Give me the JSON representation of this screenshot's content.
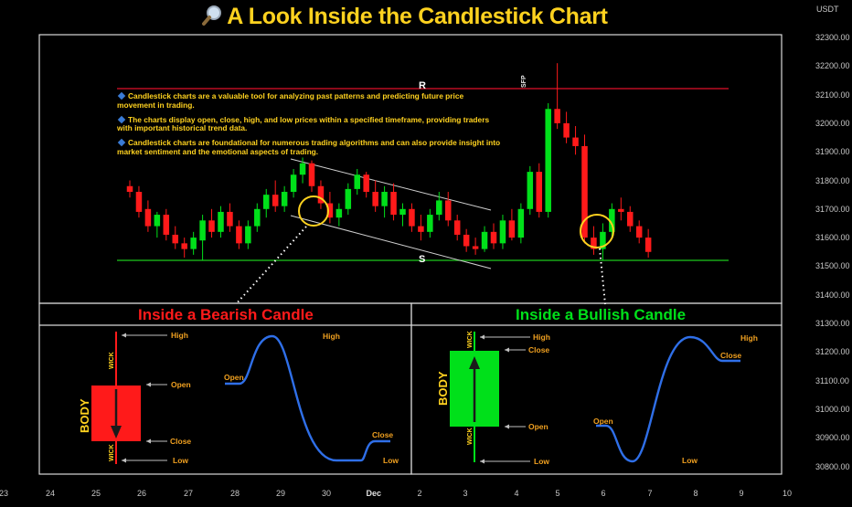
{
  "title": "A Look Inside the Candlestick Chart",
  "currency_label": "USDT",
  "price_axis": [
    "32300.00",
    "32200.00",
    "32100.00",
    "32000.00",
    "31900.00",
    "31800.00",
    "31700.00",
    "31600.00",
    "31500.00",
    "31400.00",
    "31300.00",
    "31200.00",
    "31100.00",
    "31000.00",
    "30900.00",
    "30800.00"
  ],
  "date_axis": [
    "23",
    "24",
    "25",
    "26",
    "27",
    "28",
    "29",
    "30",
    "Dec",
    "2",
    "3",
    "4",
    "5",
    "6",
    "7",
    "8",
    "9",
    "10"
  ],
  "notes": [
    "Candlestick charts are a valuable tool for analyzing past patterns and predicting future price movement in trading.",
    "The charts display open, close, high, and low prices within a specified timeframe, providing traders with important historical trend data.",
    "Candlestick charts are foundational for numerous trading algorithms and can also provide insight into market sentiment and the emotional aspects of trading."
  ],
  "levels": {
    "resistance_label": "R",
    "support_label": "S",
    "sfp_label": "SFP"
  },
  "panels": {
    "bearish": {
      "heading": "Inside a Bearish Candle",
      "body": "BODY",
      "wick": "WICK",
      "high": "High",
      "open": "Open",
      "close": "Close",
      "low": "Low",
      "line_high": "High",
      "line_open": "Open",
      "line_close": "Close",
      "line_low": "Low"
    },
    "bullish": {
      "heading": "Inside a Bullish Candle",
      "body": "BODY",
      "wick": "WICK",
      "high": "High",
      "open": "Open",
      "close": "Close",
      "low": "Low",
      "line_high": "High",
      "line_open": "Open",
      "line_close": "Close",
      "line_low": "Low"
    }
  },
  "colors": {
    "accent": "#ffd21f",
    "bull": "#00e01a",
    "bear": "#ff1a1a",
    "resistance": "#e0102a",
    "support": "#1ec81e",
    "line": "#2f6fe8",
    "label": "#f0a020"
  },
  "chart_data": {
    "type": "candlestick",
    "y_unit": "USDT",
    "ylim": [
      30750,
      32380
    ],
    "resistance": 32120,
    "support": 31520,
    "candles": [
      {
        "o": 31780,
        "h": 31800,
        "l": 31740,
        "c": 31760
      },
      {
        "o": 31760,
        "h": 31780,
        "l": 31670,
        "c": 31690
      },
      {
        "o": 31700,
        "h": 31730,
        "l": 31620,
        "c": 31640
      },
      {
        "o": 31640,
        "h": 31690,
        "l": 31600,
        "c": 31680
      },
      {
        "o": 31680,
        "h": 31700,
        "l": 31590,
        "c": 31610
      },
      {
        "o": 31610,
        "h": 31640,
        "l": 31560,
        "c": 31580
      },
      {
        "o": 31580,
        "h": 31600,
        "l": 31530,
        "c": 31560
      },
      {
        "o": 31560,
        "h": 31620,
        "l": 31540,
        "c": 31600
      },
      {
        "o": 31590,
        "h": 31680,
        "l": 31520,
        "c": 31660
      },
      {
        "o": 31660,
        "h": 31700,
        "l": 31600,
        "c": 31620
      },
      {
        "o": 31620,
        "h": 31710,
        "l": 31600,
        "c": 31690
      },
      {
        "o": 31690,
        "h": 31720,
        "l": 31620,
        "c": 31640
      },
      {
        "o": 31640,
        "h": 31660,
        "l": 31560,
        "c": 31580
      },
      {
        "o": 31580,
        "h": 31660,
        "l": 31560,
        "c": 31640
      },
      {
        "o": 31640,
        "h": 31720,
        "l": 31620,
        "c": 31700
      },
      {
        "o": 31700,
        "h": 31770,
        "l": 31670,
        "c": 31750
      },
      {
        "o": 31750,
        "h": 31800,
        "l": 31690,
        "c": 31710
      },
      {
        "o": 31710,
        "h": 31780,
        "l": 31690,
        "c": 31760
      },
      {
        "o": 31760,
        "h": 31840,
        "l": 31740,
        "c": 31820
      },
      {
        "o": 31820,
        "h": 31880,
        "l": 31790,
        "c": 31860
      },
      {
        "o": 31860,
        "h": 31870,
        "l": 31760,
        "c": 31780
      },
      {
        "o": 31780,
        "h": 31800,
        "l": 31700,
        "c": 31720
      },
      {
        "o": 31720,
        "h": 31760,
        "l": 31650,
        "c": 31670
      },
      {
        "o": 31670,
        "h": 31720,
        "l": 31640,
        "c": 31700
      },
      {
        "o": 31700,
        "h": 31790,
        "l": 31680,
        "c": 31770
      },
      {
        "o": 31770,
        "h": 31840,
        "l": 31750,
        "c": 31820
      },
      {
        "o": 31820,
        "h": 31830,
        "l": 31740,
        "c": 31760
      },
      {
        "o": 31760,
        "h": 31800,
        "l": 31690,
        "c": 31710
      },
      {
        "o": 31710,
        "h": 31780,
        "l": 31670,
        "c": 31760
      },
      {
        "o": 31760,
        "h": 31790,
        "l": 31660,
        "c": 31680
      },
      {
        "o": 31680,
        "h": 31720,
        "l": 31640,
        "c": 31700
      },
      {
        "o": 31700,
        "h": 31720,
        "l": 31620,
        "c": 31640
      },
      {
        "o": 31640,
        "h": 31680,
        "l": 31590,
        "c": 31620
      },
      {
        "o": 31620,
        "h": 31700,
        "l": 31600,
        "c": 31680
      },
      {
        "o": 31680,
        "h": 31760,
        "l": 31660,
        "c": 31730
      },
      {
        "o": 31730,
        "h": 31760,
        "l": 31640,
        "c": 31660
      },
      {
        "o": 31660,
        "h": 31680,
        "l": 31590,
        "c": 31610
      },
      {
        "o": 31610,
        "h": 31630,
        "l": 31550,
        "c": 31570
      },
      {
        "o": 31570,
        "h": 31600,
        "l": 31540,
        "c": 31560
      },
      {
        "o": 31560,
        "h": 31640,
        "l": 31550,
        "c": 31620
      },
      {
        "o": 31620,
        "h": 31650,
        "l": 31560,
        "c": 31580
      },
      {
        "o": 31580,
        "h": 31680,
        "l": 31560,
        "c": 31660
      },
      {
        "o": 31660,
        "h": 31700,
        "l": 31590,
        "c": 31600
      },
      {
        "o": 31600,
        "h": 31720,
        "l": 31580,
        "c": 31700
      },
      {
        "o": 31700,
        "h": 31850,
        "l": 31680,
        "c": 31830
      },
      {
        "o": 31830,
        "h": 31860,
        "l": 31670,
        "c": 31690
      },
      {
        "o": 31690,
        "h": 32070,
        "l": 31670,
        "c": 32050
      },
      {
        "o": 32050,
        "h": 32210,
        "l": 31980,
        "c": 32000
      },
      {
        "o": 32000,
        "h": 32040,
        "l": 31930,
        "c": 31950
      },
      {
        "o": 31950,
        "h": 31990,
        "l": 31890,
        "c": 31920
      },
      {
        "o": 31920,
        "h": 31960,
        "l": 31580,
        "c": 31600
      },
      {
        "o": 31600,
        "h": 31640,
        "l": 31540,
        "c": 31560
      },
      {
        "o": 31560,
        "h": 31650,
        "l": 31520,
        "c": 31620
      },
      {
        "o": 31620,
        "h": 31720,
        "l": 31600,
        "c": 31700
      },
      {
        "o": 31700,
        "h": 31740,
        "l": 31660,
        "c": 31690
      },
      {
        "o": 31690,
        "h": 31710,
        "l": 31620,
        "c": 31640
      },
      {
        "o": 31640,
        "h": 31660,
        "l": 31580,
        "c": 31600
      },
      {
        "o": 31600,
        "h": 31630,
        "l": 31530,
        "c": 31550
      }
    ]
  }
}
